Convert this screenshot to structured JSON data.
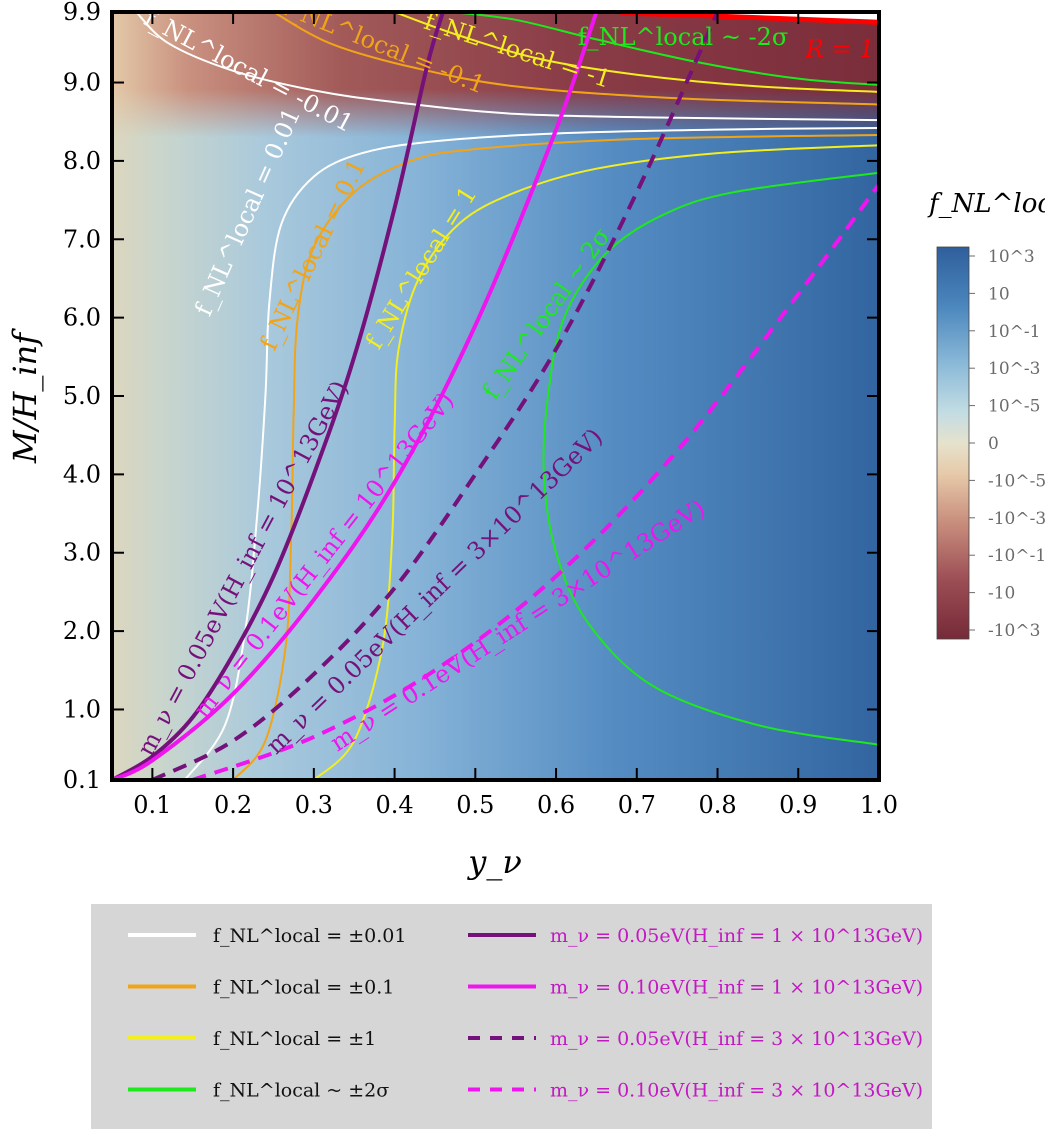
{
  "chart_data": {
    "type": "heatmap",
    "xlabel": "y_ν",
    "ylabel": "M/H_inf",
    "xlim": [
      0.05,
      1.0
    ],
    "ylim": [
      0.1,
      9.9
    ],
    "x_ticks": [
      "0.1",
      "0.2",
      "0.3",
      "0.4",
      "0.5",
      "0.6",
      "0.7",
      "0.8",
      "0.9",
      "1.0"
    ],
    "y_ticks": [
      "0.1",
      "1.0",
      "2.0",
      "3.0",
      "4.0",
      "5.0",
      "6.0",
      "7.0",
      "8.0",
      "9.0",
      "9.9"
    ],
    "colorbar": {
      "title": "f_NL^local",
      "ticks": [
        "10^3",
        "10",
        "10^-1",
        "10^-3",
        "10^-5",
        "0",
        "-10^-5",
        "-10^-3",
        "-10^-1",
        "-10",
        "-10^3"
      ],
      "colors": {
        "positive": "#2f5f9c",
        "zero": "#e2dcc6",
        "negative": "#7a2d3a"
      }
    },
    "contours": [
      {
        "name": "f_NL^local = ±0.01",
        "color": "#ffffff",
        "label_pos": "f_NL^local = 0.01",
        "label_neg": "f_NL^local = -0.01",
        "branch_pos": [
          [
            0.14,
            0.1
          ],
          [
            0.19,
            0.8
          ],
          [
            0.215,
            2.0
          ],
          [
            0.23,
            3.5
          ],
          [
            0.24,
            5.0
          ],
          [
            0.245,
            6.2
          ],
          [
            0.26,
            7.2
          ],
          [
            0.3,
            7.8
          ],
          [
            0.36,
            8.1
          ],
          [
            0.45,
            8.25
          ],
          [
            0.6,
            8.35
          ],
          [
            0.8,
            8.4
          ],
          [
            1.0,
            8.42
          ]
        ],
        "branch_neg": [
          [
            0.08,
            9.9
          ],
          [
            0.12,
            9.5
          ],
          [
            0.2,
            9.15
          ],
          [
            0.3,
            8.9
          ],
          [
            0.4,
            8.75
          ],
          [
            0.55,
            8.6
          ],
          [
            0.75,
            8.55
          ],
          [
            1.0,
            8.52
          ]
        ]
      },
      {
        "name": "f_NL^local = ±0.1",
        "color": "#f2a417",
        "label_pos": "f_NL^local = 0.1",
        "label_neg": "f_NL^local = -0.1",
        "branch_pos": [
          [
            0.2,
            0.1
          ],
          [
            0.24,
            0.6
          ],
          [
            0.265,
            1.8
          ],
          [
            0.272,
            3.2
          ],
          [
            0.275,
            4.8
          ],
          [
            0.28,
            6.0
          ],
          [
            0.3,
            6.9
          ],
          [
            0.35,
            7.6
          ],
          [
            0.42,
            8.0
          ],
          [
            0.5,
            8.15
          ],
          [
            0.7,
            8.28
          ],
          [
            1.0,
            8.33
          ]
        ],
        "branch_neg": [
          [
            0.25,
            9.9
          ],
          [
            0.32,
            9.5
          ],
          [
            0.42,
            9.2
          ],
          [
            0.55,
            8.95
          ],
          [
            0.75,
            8.8
          ],
          [
            1.0,
            8.72
          ]
        ]
      },
      {
        "name": "f_NL^local = ±1",
        "color": "#f2ee1f",
        "label_pos": "f_NL^local = 1",
        "label_neg": "f_NL^local = -1",
        "branch_pos": [
          [
            0.3,
            0.1
          ],
          [
            0.35,
            0.6
          ],
          [
            0.385,
            1.8
          ],
          [
            0.397,
            3.2
          ],
          [
            0.4,
            4.6
          ],
          [
            0.405,
            5.6
          ],
          [
            0.43,
            6.5
          ],
          [
            0.48,
            7.2
          ],
          [
            0.55,
            7.6
          ],
          [
            0.65,
            7.9
          ],
          [
            0.8,
            8.1
          ],
          [
            1.0,
            8.2
          ]
        ],
        "branch_neg": [
          [
            0.4,
            9.9
          ],
          [
            0.48,
            9.6
          ],
          [
            0.58,
            9.3
          ],
          [
            0.7,
            9.1
          ],
          [
            0.85,
            8.95
          ],
          [
            1.0,
            8.88
          ]
        ]
      },
      {
        "name": "f_NL^local ~ ±2σ",
        "color": "#1ee81e",
        "label_pos": "f_NL^local ~ 2σ",
        "label_neg": "f_NL^local ~ -2σ",
        "branch_pos": [
          [
            1.0,
            0.55
          ],
          [
            0.85,
            0.8
          ],
          [
            0.72,
            1.3
          ],
          [
            0.64,
            2.1
          ],
          [
            0.6,
            3.0
          ],
          [
            0.585,
            4.0
          ],
          [
            0.59,
            5.0
          ],
          [
            0.61,
            6.0
          ],
          [
            0.66,
            6.8
          ],
          [
            0.73,
            7.3
          ],
          [
            0.82,
            7.6
          ],
          [
            1.0,
            7.85
          ]
        ],
        "branch_neg": [
          [
            0.47,
            9.9
          ],
          [
            0.55,
            9.8
          ],
          [
            0.65,
            9.55
          ],
          [
            0.78,
            9.25
          ],
          [
            0.9,
            9.05
          ],
          [
            1.0,
            8.97
          ]
        ]
      }
    ],
    "series": [
      {
        "name": "m_ν = 0.05eV(H_inf = 1×10^13GeV)",
        "color": "#75117a",
        "style": "solid",
        "label": "m_ν = 0.05eV(H_inf = 10^13GeV)",
        "points": [
          [
            0.05,
            0.1
          ],
          [
            0.1,
            0.4
          ],
          [
            0.15,
            0.9
          ],
          [
            0.2,
            1.7
          ],
          [
            0.25,
            2.7
          ],
          [
            0.3,
            4.0
          ],
          [
            0.35,
            5.5
          ],
          [
            0.4,
            7.4
          ],
          [
            0.44,
            9.2
          ],
          [
            0.46,
            9.9
          ]
        ]
      },
      {
        "name": "m_ν = 0.10eV(H_inf = 1×10^13GeV)",
        "color": "#ee15ee",
        "style": "solid",
        "label": "m_ν = 0.1eV(H_inf = 10^13GeV)",
        "points": [
          [
            0.05,
            0.1
          ],
          [
            0.1,
            0.35
          ],
          [
            0.2,
            1.2
          ],
          [
            0.3,
            2.4
          ],
          [
            0.4,
            3.9
          ],
          [
            0.5,
            5.9
          ],
          [
            0.6,
            8.4
          ],
          [
            0.65,
            9.9
          ]
        ]
      },
      {
        "name": "m_ν = 0.05eV(H_inf = 3×10^13GeV)",
        "color": "#75117a",
        "style": "dashed",
        "label": "m_ν = 0.05eV(H_inf = 3×10^13GeV)",
        "points": [
          [
            0.1,
            0.1
          ],
          [
            0.2,
            0.6
          ],
          [
            0.3,
            1.45
          ],
          [
            0.4,
            2.55
          ],
          [
            0.5,
            4.0
          ],
          [
            0.6,
            5.6
          ],
          [
            0.7,
            7.6
          ],
          [
            0.8,
            9.9
          ]
        ]
      },
      {
        "name": "m_ν = 0.10eV(H_inf = 3×10^13GeV)",
        "color": "#ee15ee",
        "style": "dashed",
        "label": "m_ν = 0.1eV(H_inf = 3×10^13GeV)",
        "points": [
          [
            0.15,
            0.1
          ],
          [
            0.3,
            0.65
          ],
          [
            0.45,
            1.5
          ],
          [
            0.6,
            2.7
          ],
          [
            0.75,
            4.3
          ],
          [
            0.9,
            6.3
          ],
          [
            1.0,
            7.7
          ]
        ]
      }
    ],
    "boundary": {
      "label": "R = 1",
      "color": "#ff0000",
      "points": [
        [
          0.68,
          9.9
        ],
        [
          0.8,
          9.86
        ],
        [
          0.9,
          9.82
        ],
        [
          1.0,
          9.78
        ]
      ]
    },
    "legend": {
      "position": "bottom",
      "entries": [
        {
          "text": "f_NL^local = ±0.01",
          "color": "#ffffff",
          "style": "solid"
        },
        {
          "text": "f_NL^local = ±0.1",
          "color": "#f2a417",
          "style": "solid"
        },
        {
          "text": "f_NL^local = ±1",
          "color": "#f2ee1f",
          "style": "solid"
        },
        {
          "text": "f_NL^local ~ ±2σ",
          "color": "#1ee81e",
          "style": "solid"
        },
        {
          "text": "m_ν = 0.05eV(H_inf = 1 × 10^13GeV)",
          "color": "#75117a",
          "style": "solid"
        },
        {
          "text": "m_ν = 0.10eV(H_inf = 1 × 10^13GeV)",
          "color": "#ee15ee",
          "style": "solid"
        },
        {
          "text": "m_ν = 0.05eV(H_inf = 3 × 10^13GeV)",
          "color": "#75117a",
          "style": "dashed"
        },
        {
          "text": "m_ν = 0.10eV(H_inf = 3 × 10^13GeV)",
          "color": "#ee15ee",
          "style": "dashed"
        }
      ]
    }
  }
}
